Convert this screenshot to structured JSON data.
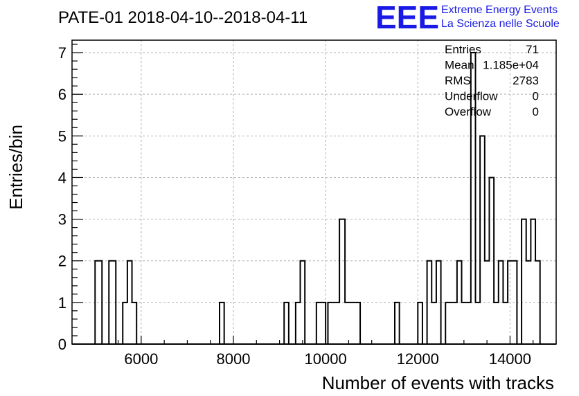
{
  "title": "PATE-01 2018-04-10--2018-04-11",
  "logo": {
    "mark": "EEE",
    "line1": "Extreme Energy Events",
    "line2": "La Scienza nelle Scuole",
    "color": "#1a1ae6"
  },
  "stats": {
    "rows": [
      {
        "label": "Entries",
        "value": "71"
      },
      {
        "label": "Mean",
        "value": "1.185e+04"
      },
      {
        "label": "RMS",
        "value": "2783"
      },
      {
        "label": "Underflow",
        "value": "0"
      },
      {
        "label": "Overflow",
        "value": "0"
      }
    ]
  },
  "chart_data": {
    "type": "histogram",
    "title": "PATE-01 2018-04-10--2018-04-11",
    "xlabel": "Number of events with tracks",
    "ylabel": "Entries/bin",
    "xlim": [
      4500,
      15000
    ],
    "ylim": [
      0,
      7.3
    ],
    "x_ticks": [
      6000,
      8000,
      10000,
      12000,
      14000
    ],
    "y_ticks": [
      0,
      1,
      2,
      3,
      4,
      5,
      6,
      7
    ],
    "grid": true,
    "bin_width": 150,
    "bins": [
      {
        "x0": 5000,
        "x1": 5150,
        "count": 2
      },
      {
        "x0": 5150,
        "x1": 5300,
        "count": 0
      },
      {
        "x0": 5300,
        "x1": 5450,
        "count": 2
      },
      {
        "x0": 5450,
        "x1": 5600,
        "count": 0
      },
      {
        "x0": 5600,
        "x1": 5700,
        "count": 1
      },
      {
        "x0": 5700,
        "x1": 5800,
        "count": 2
      },
      {
        "x0": 5800,
        "x1": 5900,
        "count": 1
      },
      {
        "x0": 7700,
        "x1": 7800,
        "count": 1
      },
      {
        "x0": 9100,
        "x1": 9200,
        "count": 1
      },
      {
        "x0": 9200,
        "x1": 9350,
        "count": 0
      },
      {
        "x0": 9350,
        "x1": 9450,
        "count": 1
      },
      {
        "x0": 9450,
        "x1": 9550,
        "count": 2
      },
      {
        "x0": 9800,
        "x1": 10000,
        "count": 1
      },
      {
        "x0": 10000,
        "x1": 10050,
        "count": 0
      },
      {
        "x0": 10050,
        "x1": 10300,
        "count": 1
      },
      {
        "x0": 10300,
        "x1": 10420,
        "count": 3
      },
      {
        "x0": 10420,
        "x1": 10750,
        "count": 1
      },
      {
        "x0": 11500,
        "x1": 11600,
        "count": 1
      },
      {
        "x0": 12000,
        "x1": 12100,
        "count": 1
      },
      {
        "x0": 12200,
        "x1": 12300,
        "count": 2
      },
      {
        "x0": 12300,
        "x1": 12400,
        "count": 1
      },
      {
        "x0": 12400,
        "x1": 12500,
        "count": 2
      },
      {
        "x0": 12500,
        "x1": 12600,
        "count": 0
      },
      {
        "x0": 12600,
        "x1": 12850,
        "count": 1
      },
      {
        "x0": 12850,
        "x1": 12950,
        "count": 2
      },
      {
        "x0": 12950,
        "x1": 13150,
        "count": 1
      },
      {
        "x0": 13150,
        "x1": 13250,
        "count": 7
      },
      {
        "x0": 13250,
        "x1": 13350,
        "count": 1
      },
      {
        "x0": 13350,
        "x1": 13450,
        "count": 5
      },
      {
        "x0": 13450,
        "x1": 13550,
        "count": 2
      },
      {
        "x0": 13550,
        "x1": 13650,
        "count": 4
      },
      {
        "x0": 13650,
        "x1": 13750,
        "count": 1
      },
      {
        "x0": 13750,
        "x1": 13850,
        "count": 2
      },
      {
        "x0": 13850,
        "x1": 13950,
        "count": 1
      },
      {
        "x0": 13950,
        "x1": 14150,
        "count": 2
      },
      {
        "x0": 14150,
        "x1": 14250,
        "count": 0
      },
      {
        "x0": 14250,
        "x1": 14350,
        "count": 3
      },
      {
        "x0": 14350,
        "x1": 14450,
        "count": 2
      },
      {
        "x0": 14450,
        "x1": 14550,
        "count": 3
      },
      {
        "x0": 14550,
        "x1": 14650,
        "count": 2
      }
    ]
  }
}
